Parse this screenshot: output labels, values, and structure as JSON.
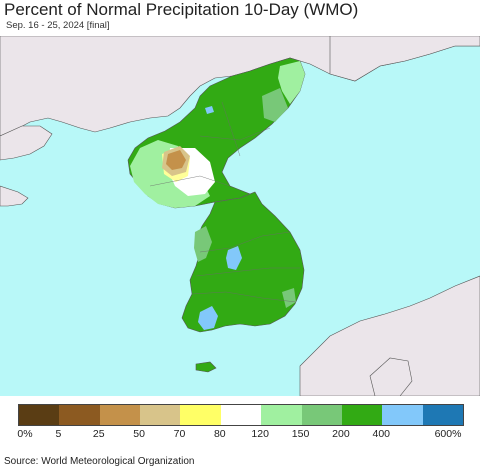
{
  "header": {
    "title": "Percent of Normal Precipitation 10-Day (WMO)",
    "subtitle": "Sep. 16 - 25, 2024 [final]"
  },
  "legend": {
    "colors": [
      "#5a3d14",
      "#8c5a21",
      "#c4914a",
      "#d8c48a",
      "#ffff66",
      "#ffffff",
      "#a0f0a0",
      "#78c878",
      "#32aa14",
      "#82c8fa",
      "#1e78b4"
    ],
    "labels": [
      "0%",
      "5",
      "25",
      "50",
      "70",
      "80",
      "120",
      "150",
      "200",
      "400",
      "600%"
    ]
  },
  "footer": {
    "source": "Source: World Meteorological Organization"
  }
}
